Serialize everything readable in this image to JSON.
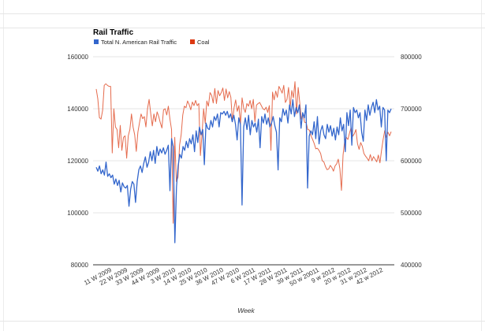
{
  "chart_data": {
    "type": "line",
    "title": "Rail Traffic",
    "xlabel": "Week",
    "ylabel": "",
    "ylim": [
      80000,
      160000
    ],
    "y2lim": [
      400000,
      800000
    ],
    "yticks": [
      "80000",
      "100000",
      "120000",
      "140000",
      "160000"
    ],
    "y2ticks": [
      "400000",
      "500000",
      "600000",
      "700000",
      "800000"
    ],
    "xtick_labels": [
      "11 W 2009",
      "22 W 2009",
      "33 W 2009",
      "44 W 2009",
      "3 W 2010",
      "14 W 2010",
      "25 W 2010",
      "36 W 2010",
      "47 W 2010",
      "6 W 2011",
      "17 W 2011",
      "28 W 2011",
      "39 w 2011",
      "50 w 20011",
      "9 w 2012",
      "20 w 2012",
      "31 w 2012",
      "42 w 2012"
    ],
    "grid": true,
    "legend_position": "top-left",
    "series": [
      {
        "name": "Total N. American Rail Traffic",
        "axis": "left",
        "color": "#3366cc",
        "values": [
          117500,
          116000,
          118000,
          115000,
          116500,
          114500,
          119500,
          114000,
          115000,
          113500,
          114500,
          111000,
          113000,
          110500,
          112500,
          108000,
          111500,
          110000,
          109500,
          110500,
          102500,
          109000,
          112000,
          111000,
          104000,
          112000,
          116500,
          118000,
          115500,
          119000,
          121500,
          117500,
          119500,
          123500,
          120000,
          124000,
          119000,
          125500,
          122000,
          124500,
          123000,
          125000,
          122500,
          124000,
          126000,
          108500,
          128500,
          125500,
          88500,
          110000,
          118000,
          122500,
          121000,
          125500,
          124000,
          127500,
          125000,
          128500,
          126500,
          130000,
          123500,
          131500,
          127000,
          133000,
          130000,
          132000,
          118500,
          134500,
          132500,
          132000,
          135500,
          133000,
          137000,
          135500,
          138000,
          133000,
          138500,
          138000,
          139000,
          137500,
          139000,
          136500,
          138000,
          135000,
          137500,
          134000,
          128000,
          136500,
          134000,
          103000,
          133000,
          136500,
          132000,
          137500,
          130000,
          135500,
          133000,
          134500,
          131000,
          136000,
          125000,
          137000,
          134500,
          138000,
          134000,
          136500,
          133000,
          134500,
          137000,
          133500,
          131000,
          116500,
          136500,
          135000,
          140000,
          137500,
          139500,
          134500,
          141500,
          138000,
          143500,
          137000,
          140500,
          138500,
          141500,
          132500,
          138500,
          136500,
          141500,
          109500,
          129500,
          131500,
          130000,
          135000,
          128500,
          137000,
          126500,
          131500,
          133500,
          130000,
          128500,
          134000,
          131000,
          133500,
          129500,
          132500,
          128000,
          133000,
          130000,
          136500,
          131500,
          134000,
          123500,
          138500,
          133500,
          139500,
          126000,
          140500,
          138500,
          139500,
          136500,
          138500,
          131000,
          127500,
          139500,
          135500,
          141500,
          137500,
          140500,
          142500,
          138500,
          143500,
          139500,
          141000,
          133000,
          140500,
          139500,
          120000,
          139500,
          138500,
          140000
        ]
      },
      {
        "name": "Coal",
        "axis": "right",
        "color": "#dc3912",
        "values": [
          738000,
          719000,
          683000,
          680000,
          697000,
          745000,
          748000,
          745000,
          743000,
          743000,
          615000,
          700000,
          665000,
          660000,
          625000,
          668000,
          620000,
          645000,
          648000,
          605000,
          648000,
          660000,
          690000,
          665000,
          650000,
          618000,
          655000,
          673000,
          690000,
          681000,
          685000,
          665000,
          700000,
          718000,
          691000,
          667000,
          690000,
          675000,
          694000,
          685000,
          673000,
          663000,
          698000,
          700000,
          688000,
          705000,
          680000,
          660000,
          480000,
          645000,
          560000,
          568000,
          630000,
          650000,
          688000,
          705000,
          702000,
          715000,
          708000,
          698000,
          713000,
          706000,
          716000,
          706000,
          710000,
          610000,
          651000,
          700000,
          672000,
          715000,
          705000,
          731000,
          726000,
          711000,
          739000,
          710000,
          735000,
          725000,
          731000,
          740000,
          716000,
          738000,
          721000,
          733000,
          722000,
          675000,
          702000,
          717000,
          695000,
          706000,
          670000,
          721000,
          701000,
          693000,
          710000,
          705000,
          716000,
          700000,
          718000,
          675000,
          707000,
          710000,
          712000,
          706000,
          700000,
          698000,
          703000,
          693000,
          706000,
          620000,
          732000,
          717000,
          734000,
          722000,
          743000,
          737000,
          730000,
          745000,
          712000,
          718000,
          741000,
          702000,
          735000,
          721000,
          752000,
          690000,
          741000,
          711000,
          680000,
          690000,
          674000,
          673000,
          660000,
          659000,
          648000,
          641000,
          633000,
          623000,
          624000,
          620000,
          614000,
          600000,
          598000,
          589000,
          583000,
          584000,
          591000,
          587000,
          580000,
          590000,
          594000,
          603000,
          585000,
          543000,
          611000,
          638000,
          645000,
          641000,
          653000,
          664000,
          647000,
          652000,
          660000,
          633000,
          622000,
          635000,
          628000,
          614000,
          609000,
          605000,
          600000,
          612000,
          600000,
          608000,
          603000,
          598000,
          611000,
          596000,
          620000,
          641000,
          658000,
          645000,
          655000,
          648000,
          656000
        ]
      }
    ]
  }
}
